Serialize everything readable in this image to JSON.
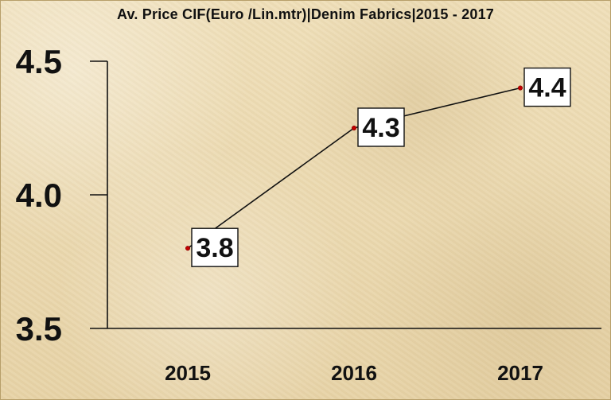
{
  "chart_data": {
    "type": "line",
    "title": "Av. Price CIF(Euro /Lin.mtr)|Denim Fabrics|2015 - 2017",
    "categories": [
      "2015",
      "2016",
      "2017"
    ],
    "values": [
      3.8,
      4.25,
      4.4
    ],
    "data_labels": [
      "3.8",
      "4.3",
      "4.4"
    ],
    "ylim": [
      3.5,
      4.5
    ],
    "yticks": [
      "3.5",
      "4.0",
      "4.5"
    ],
    "grid": false,
    "legend": "none",
    "colors": {
      "line": "#111111",
      "marker": "#c00000",
      "axis": "#111111",
      "label_background": "#ffffff"
    }
  }
}
